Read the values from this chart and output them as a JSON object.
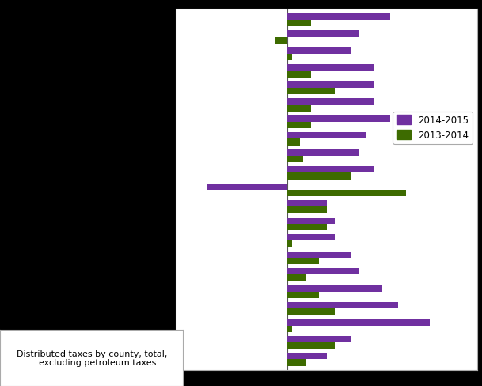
{
  "legend_labels": [
    "2014-2015",
    "2013-2014"
  ],
  "bar_color_2014": "#7030a0",
  "bar_color_2013": "#3d6b00",
  "n_categories": 21,
  "values_2014": [
    6.5,
    4.5,
    4.0,
    5.5,
    5.5,
    5.5,
    6.5,
    5.0,
    4.5,
    5.5,
    -5.0,
    2.5,
    3.0,
    3.0,
    4.0,
    4.5,
    6.0,
    7.0,
    9.0,
    4.0,
    2.5
  ],
  "values_2013": [
    1.5,
    -0.7,
    0.3,
    1.5,
    3.0,
    1.5,
    1.5,
    0.8,
    1.0,
    4.0,
    7.5,
    2.5,
    2.5,
    0.3,
    2.0,
    1.2,
    2.0,
    3.0,
    0.3,
    3.0,
    1.2
  ],
  "xlim": [
    -7.0,
    12.0
  ],
  "background_color": "#ffffff",
  "figure_background": "#000000",
  "annotation_text": "Distributed taxes by county, total,\n    excluding petroleum taxes",
  "grid_color": "#c8c8c8",
  "bar_height": 0.38
}
